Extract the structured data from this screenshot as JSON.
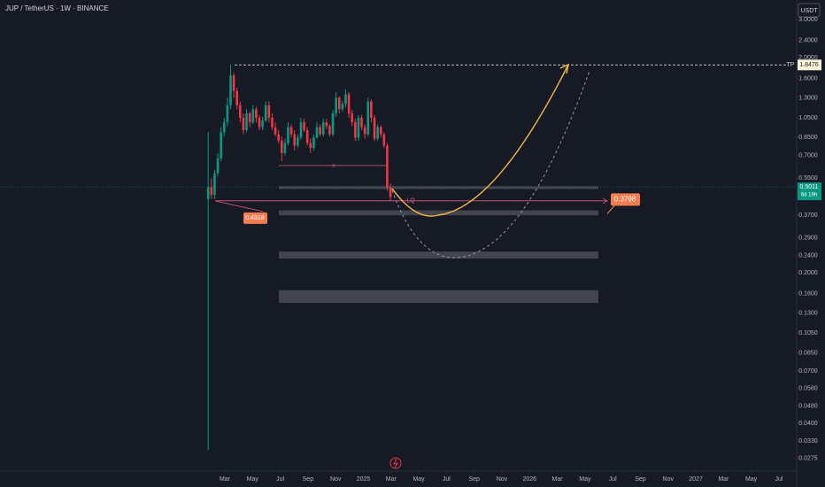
{
  "chart_data": {
    "type": "candlestick",
    "title": "JUP / TetherUS · 1W · BINANCE",
    "currency": "USDT",
    "log_scale": true,
    "ylim": [
      0.024,
      3.7
    ],
    "yticks": [
      {
        "value": 3,
        "label": "3.0000"
      },
      {
        "value": 2.4,
        "label": "2.4000"
      },
      {
        "value": 2,
        "label": "2.0000"
      },
      {
        "value": 1.6,
        "label": "1.6000"
      },
      {
        "value": 1.3,
        "label": "1.3000"
      },
      {
        "value": 1.05,
        "label": "1.0500"
      },
      {
        "value": 0.85,
        "label": "0.8500"
      },
      {
        "value": 0.7,
        "label": "0.7000"
      },
      {
        "value": 0.55,
        "label": "0.5500"
      },
      {
        "value": 0.37,
        "label": "0.3700"
      },
      {
        "value": 0.29,
        "label": "0.2900"
      },
      {
        "value": 0.24,
        "label": "0.2400"
      },
      {
        "value": 0.2,
        "label": "0.2000"
      },
      {
        "value": 0.16,
        "label": "0.1600"
      },
      {
        "value": 0.13,
        "label": "0.1300"
      },
      {
        "value": 0.105,
        "label": "0.1050"
      },
      {
        "value": 0.085,
        "label": "0.0850"
      },
      {
        "value": 0.07,
        "label": "0.0700"
      },
      {
        "value": 0.058,
        "label": "0.0580"
      },
      {
        "value": 0.048,
        "label": "0.0480"
      },
      {
        "value": 0.04,
        "label": "0.0400"
      },
      {
        "value": 0.033,
        "label": "0.0330"
      },
      {
        "value": 0.0275,
        "label": "0.0275"
      }
    ],
    "xlim": [
      -14.23,
      43.28
    ],
    "xticks": [
      {
        "value": 2,
        "label": "Mar"
      },
      {
        "value": 4,
        "label": "May"
      },
      {
        "value": 6,
        "label": "Jul"
      },
      {
        "value": 8,
        "label": "Sep"
      },
      {
        "value": 10,
        "label": "Nov"
      },
      {
        "value": 12,
        "label": "2025"
      },
      {
        "value": 14,
        "label": "Mar"
      },
      {
        "value": 16,
        "label": "May"
      },
      {
        "value": 18,
        "label": "Jul"
      },
      {
        "value": 20,
        "label": "Sep"
      },
      {
        "value": 22,
        "label": "Nov"
      },
      {
        "value": 24,
        "label": "2026"
      },
      {
        "value": 26,
        "label": "Mar"
      },
      {
        "value": 28,
        "label": "May"
      },
      {
        "value": 30,
        "label": "Jul"
      },
      {
        "value": 32,
        "label": "Sep"
      },
      {
        "value": 34,
        "label": "Nov"
      },
      {
        "value": 36,
        "label": "2027"
      },
      {
        "value": 38,
        "label": "Mar"
      },
      {
        "value": 40,
        "label": "May"
      },
      {
        "value": 42,
        "label": "Jul"
      }
    ],
    "up_color": "#089981",
    "down_color": "#f23645",
    "candles": {
      "open": [
        0.44,
        0.5,
        0.46,
        0.58,
        0.68,
        0.9,
        1.0,
        1.2,
        1.65,
        1.4,
        1.2,
        1.05,
        0.92,
        1.1,
        1.0,
        1.15,
        1.05,
        0.95,
        1.02,
        1.2,
        1.05,
        0.95,
        0.88,
        0.82,
        0.72,
        0.8,
        0.95,
        0.88,
        0.78,
        0.85,
        1.0,
        0.92,
        0.8,
        0.76,
        0.85,
        0.95,
        0.88,
        1.0,
        0.96,
        0.88,
        1.1,
        1.3,
        1.15,
        1.22,
        1.35,
        1.1,
        1.0,
        0.85,
        1.05,
        0.95,
        0.88,
        1.25,
        1.05,
        0.84,
        0.95,
        0.88,
        0.78,
        0.5
      ],
      "high": [
        0.9,
        0.55,
        0.6,
        0.72,
        0.95,
        1.05,
        1.3,
        1.85,
        1.7,
        1.45,
        1.25,
        1.1,
        1.15,
        1.12,
        1.2,
        1.18,
        1.08,
        1.06,
        1.25,
        1.25,
        1.1,
        1.0,
        0.92,
        0.86,
        0.84,
        1.0,
        0.98,
        0.92,
        0.88,
        1.05,
        1.04,
        0.95,
        0.84,
        0.88,
        1.0,
        0.98,
        1.04,
        1.04,
        0.98,
        1.14,
        1.38,
        1.32,
        1.26,
        1.42,
        1.38,
        1.14,
        1.04,
        1.08,
        1.08,
        0.98,
        1.3,
        1.28,
        1.08,
        0.98,
        0.97,
        0.9,
        0.8,
        0.52
      ],
      "low": [
        0.03,
        0.44,
        0.44,
        0.56,
        0.66,
        0.86,
        0.96,
        1.15,
        1.3,
        1.15,
        1.0,
        0.88,
        0.9,
        0.95,
        0.98,
        1.0,
        0.92,
        0.92,
        1.0,
        1.0,
        0.92,
        0.86,
        0.8,
        0.66,
        0.7,
        0.78,
        0.85,
        0.74,
        0.76,
        0.83,
        0.9,
        0.78,
        0.72,
        0.74,
        0.84,
        0.86,
        0.86,
        0.93,
        0.86,
        0.86,
        1.06,
        1.1,
        1.12,
        1.18,
        1.05,
        0.96,
        0.82,
        0.82,
        0.92,
        0.84,
        0.86,
        1.0,
        0.82,
        0.82,
        0.85,
        0.76,
        0.48,
        0.43
      ],
      "close": [
        0.5,
        0.46,
        0.58,
        0.68,
        0.9,
        1.0,
        1.2,
        1.65,
        1.4,
        1.2,
        1.05,
        0.92,
        1.1,
        1.0,
        1.15,
        1.05,
        0.95,
        1.02,
        1.2,
        1.05,
        0.95,
        0.88,
        0.82,
        0.72,
        0.8,
        0.95,
        0.88,
        0.78,
        0.85,
        1.0,
        0.92,
        0.8,
        0.76,
        0.85,
        0.95,
        0.88,
        1.0,
        0.96,
        0.88,
        1.1,
        1.3,
        1.15,
        1.22,
        1.35,
        1.1,
        1.0,
        0.85,
        1.05,
        0.95,
        0.88,
        1.25,
        1.05,
        0.84,
        0.95,
        0.88,
        0.78,
        0.5,
        0.45
      ]
    },
    "current_price": 0.5011,
    "countdown": "6d 19h",
    "tp": {
      "label": "TP",
      "value": 1.8476
    },
    "zones": [
      {
        "low": 0.49,
        "high": 0.505
      },
      {
        "low": 0.37,
        "high": 0.39
      },
      {
        "low": 0.233,
        "high": 0.251
      },
      {
        "low": 0.145,
        "high": 0.166
      }
    ],
    "liquidity": {
      "label": "LQ",
      "level": 0.4318,
      "target": 0.3798
    },
    "range_marker": {
      "label": "x",
      "value": 0.63
    }
  }
}
